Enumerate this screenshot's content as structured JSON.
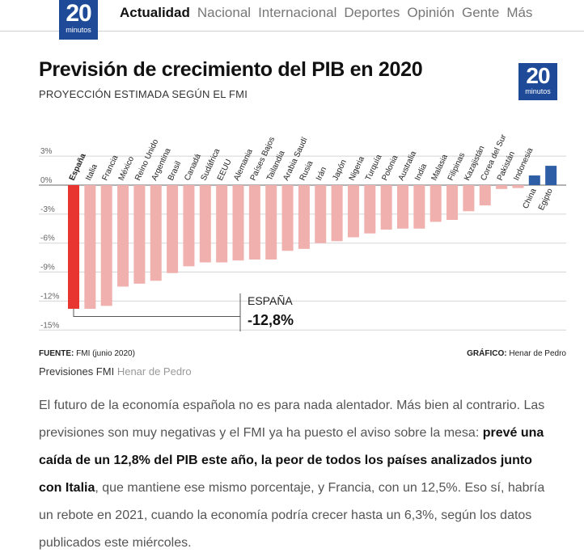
{
  "header": {
    "logo": {
      "number": "20",
      "word": "minutos"
    },
    "nav": [
      {
        "label": "Actualidad",
        "active": true
      },
      {
        "label": "Nacional",
        "active": false
      },
      {
        "label": "Internacional",
        "active": false
      },
      {
        "label": "Deportes",
        "active": false
      },
      {
        "label": "Opinión",
        "active": false
      },
      {
        "label": "Gente",
        "active": false
      },
      {
        "label": "Más",
        "active": false
      }
    ]
  },
  "infographic": {
    "logo": {
      "number": "20",
      "word": "minutos"
    },
    "source_label": "FUENTE:",
    "source_value": "FMI (junio 2020)",
    "credit_label": "GRÁFICO:",
    "credit_value": "Henar de Pedro",
    "highlight_label": "ESPAÑA",
    "highlight_value": "-12,8%"
  },
  "caption": {
    "title": "Previsiones FMI",
    "author": "Henar de Pedro"
  },
  "article": {
    "p1_a": "El futuro de la economía española no es para nada alentador. Más bien al contrario. Las previsiones son muy negativas y el FMI ya ha puesto el aviso sobre la mesa: ",
    "p1_bold": "prevé una caída de un 12,8% del PIB este año, la peor de todos los países analizados junto con Italia",
    "p1_b": ", que mantiene ese mismo porcentaje, y Francia, con un 12,5%. Eso sí, habría un rebote en 2021, cuando la economía podría crecer hasta un 6,3%, según los datos publicados este miércoles."
  },
  "colors": {
    "brand": "#1f4a97",
    "highlight": "#e8352f",
    "negative": "#f0b0ae",
    "positive": "#2e5ea6",
    "grid": "#d5d5d5",
    "axis": "#999999"
  },
  "chart_data": {
    "type": "bar",
    "title": "Previsión de crecimiento del PIB en 2020",
    "subtitle": "PROYECCIÓN ESTIMADA SEGÚN EL FMI",
    "xlabel": "",
    "ylabel": "",
    "ylim": [
      -15,
      3
    ],
    "yticks": [
      3,
      0,
      -3,
      -6,
      -9,
      -12,
      -15
    ],
    "ytick_labels": [
      "3%",
      "0%",
      "-3%",
      "-6%",
      "-9%",
      "-12%",
      "-15%"
    ],
    "grid": true,
    "highlight": "España",
    "categories": [
      "España",
      "Italia",
      "Francia",
      "México",
      "Reino Unido",
      "Argentina",
      "Brasil",
      "Canadá",
      "Sudáfrica",
      "EEUU",
      "Alemania",
      "Países Bajos",
      "Tailandia",
      "Arabia Saudí",
      "Rusia",
      "Irán",
      "Japón",
      "Nigeria",
      "Turquía",
      "Polonia",
      "Australia",
      "India",
      "Malasia",
      "Filipinas",
      "Kazajistán",
      "Corea del Sur",
      "Pakistán",
      "Indonesia",
      "China",
      "Egipto"
    ],
    "values": [
      -12.8,
      -12.8,
      -12.5,
      -10.5,
      -10.2,
      -9.9,
      -9.1,
      -8.4,
      -8.0,
      -8.0,
      -7.8,
      -7.7,
      -7.7,
      -6.8,
      -6.6,
      -6.0,
      -5.8,
      -5.4,
      -5.0,
      -4.6,
      -4.5,
      -4.5,
      -3.8,
      -3.6,
      -2.7,
      -2.1,
      -0.4,
      -0.3,
      1.0,
      2.0
    ],
    "annotation": {
      "label": "ESPAÑA",
      "value": "-12,8%"
    }
  }
}
